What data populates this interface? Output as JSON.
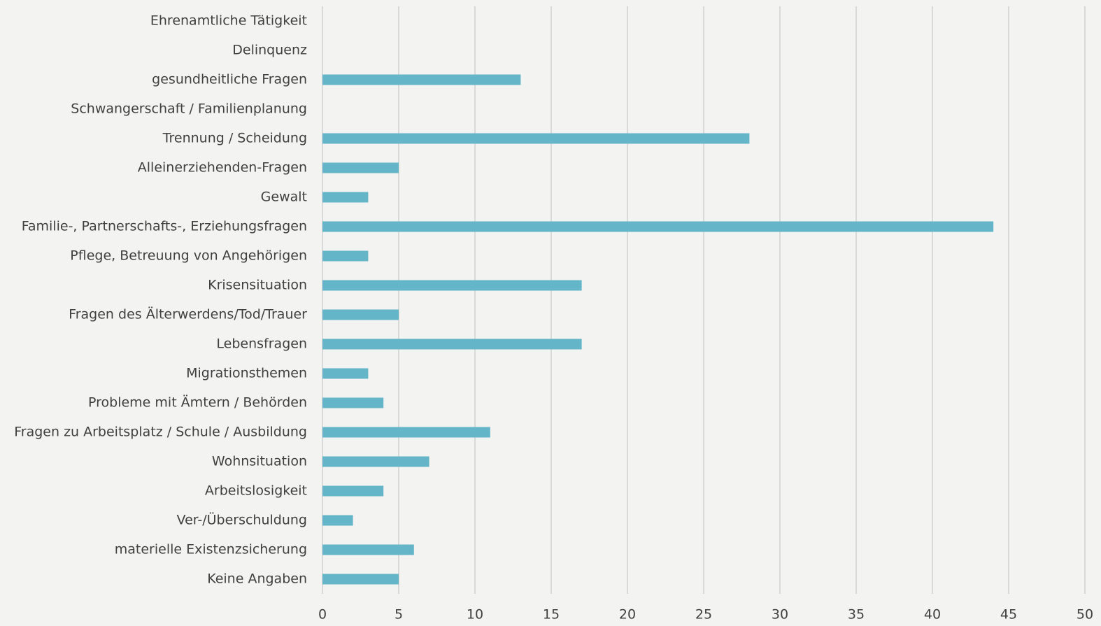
{
  "chart_data": {
    "type": "hbar",
    "categories": [
      "Ehrenamtliche Tätigkeit",
      "Delinquenz",
      "gesundheitliche Fragen",
      "Schwangerschaft / Familienplanung",
      "Trennung / Scheidung",
      "Alleinerziehenden-Fragen",
      "Gewalt",
      "Familie-, Partnerschafts-, Erziehungsfragen",
      "Pflege, Betreuung von Angehörigen",
      "Krisensituation",
      "Fragen des Älterwerdens/Tod/Trauer",
      "Lebensfragen",
      "Migrationsthemen",
      "Probleme mit Ämtern / Behörden",
      "Fragen zu Arbeitsplatz / Schule / Ausbildung",
      "Wohnsituation",
      "Arbeitslosigkeit",
      "Ver-/Überschuldung",
      "materielle Existenzsicherung",
      "Keine Angaben"
    ],
    "values": [
      0,
      0,
      13,
      0,
      28,
      5,
      3,
      44,
      3,
      17,
      5,
      17,
      3,
      4,
      11,
      7,
      4,
      2,
      6,
      5
    ],
    "color": "#65b5c8",
    "xlim": [
      0,
      50
    ],
    "xticks": [
      0,
      5,
      10,
      15,
      20,
      25,
      30,
      35,
      40,
      45,
      50
    ],
    "grid": true
  }
}
